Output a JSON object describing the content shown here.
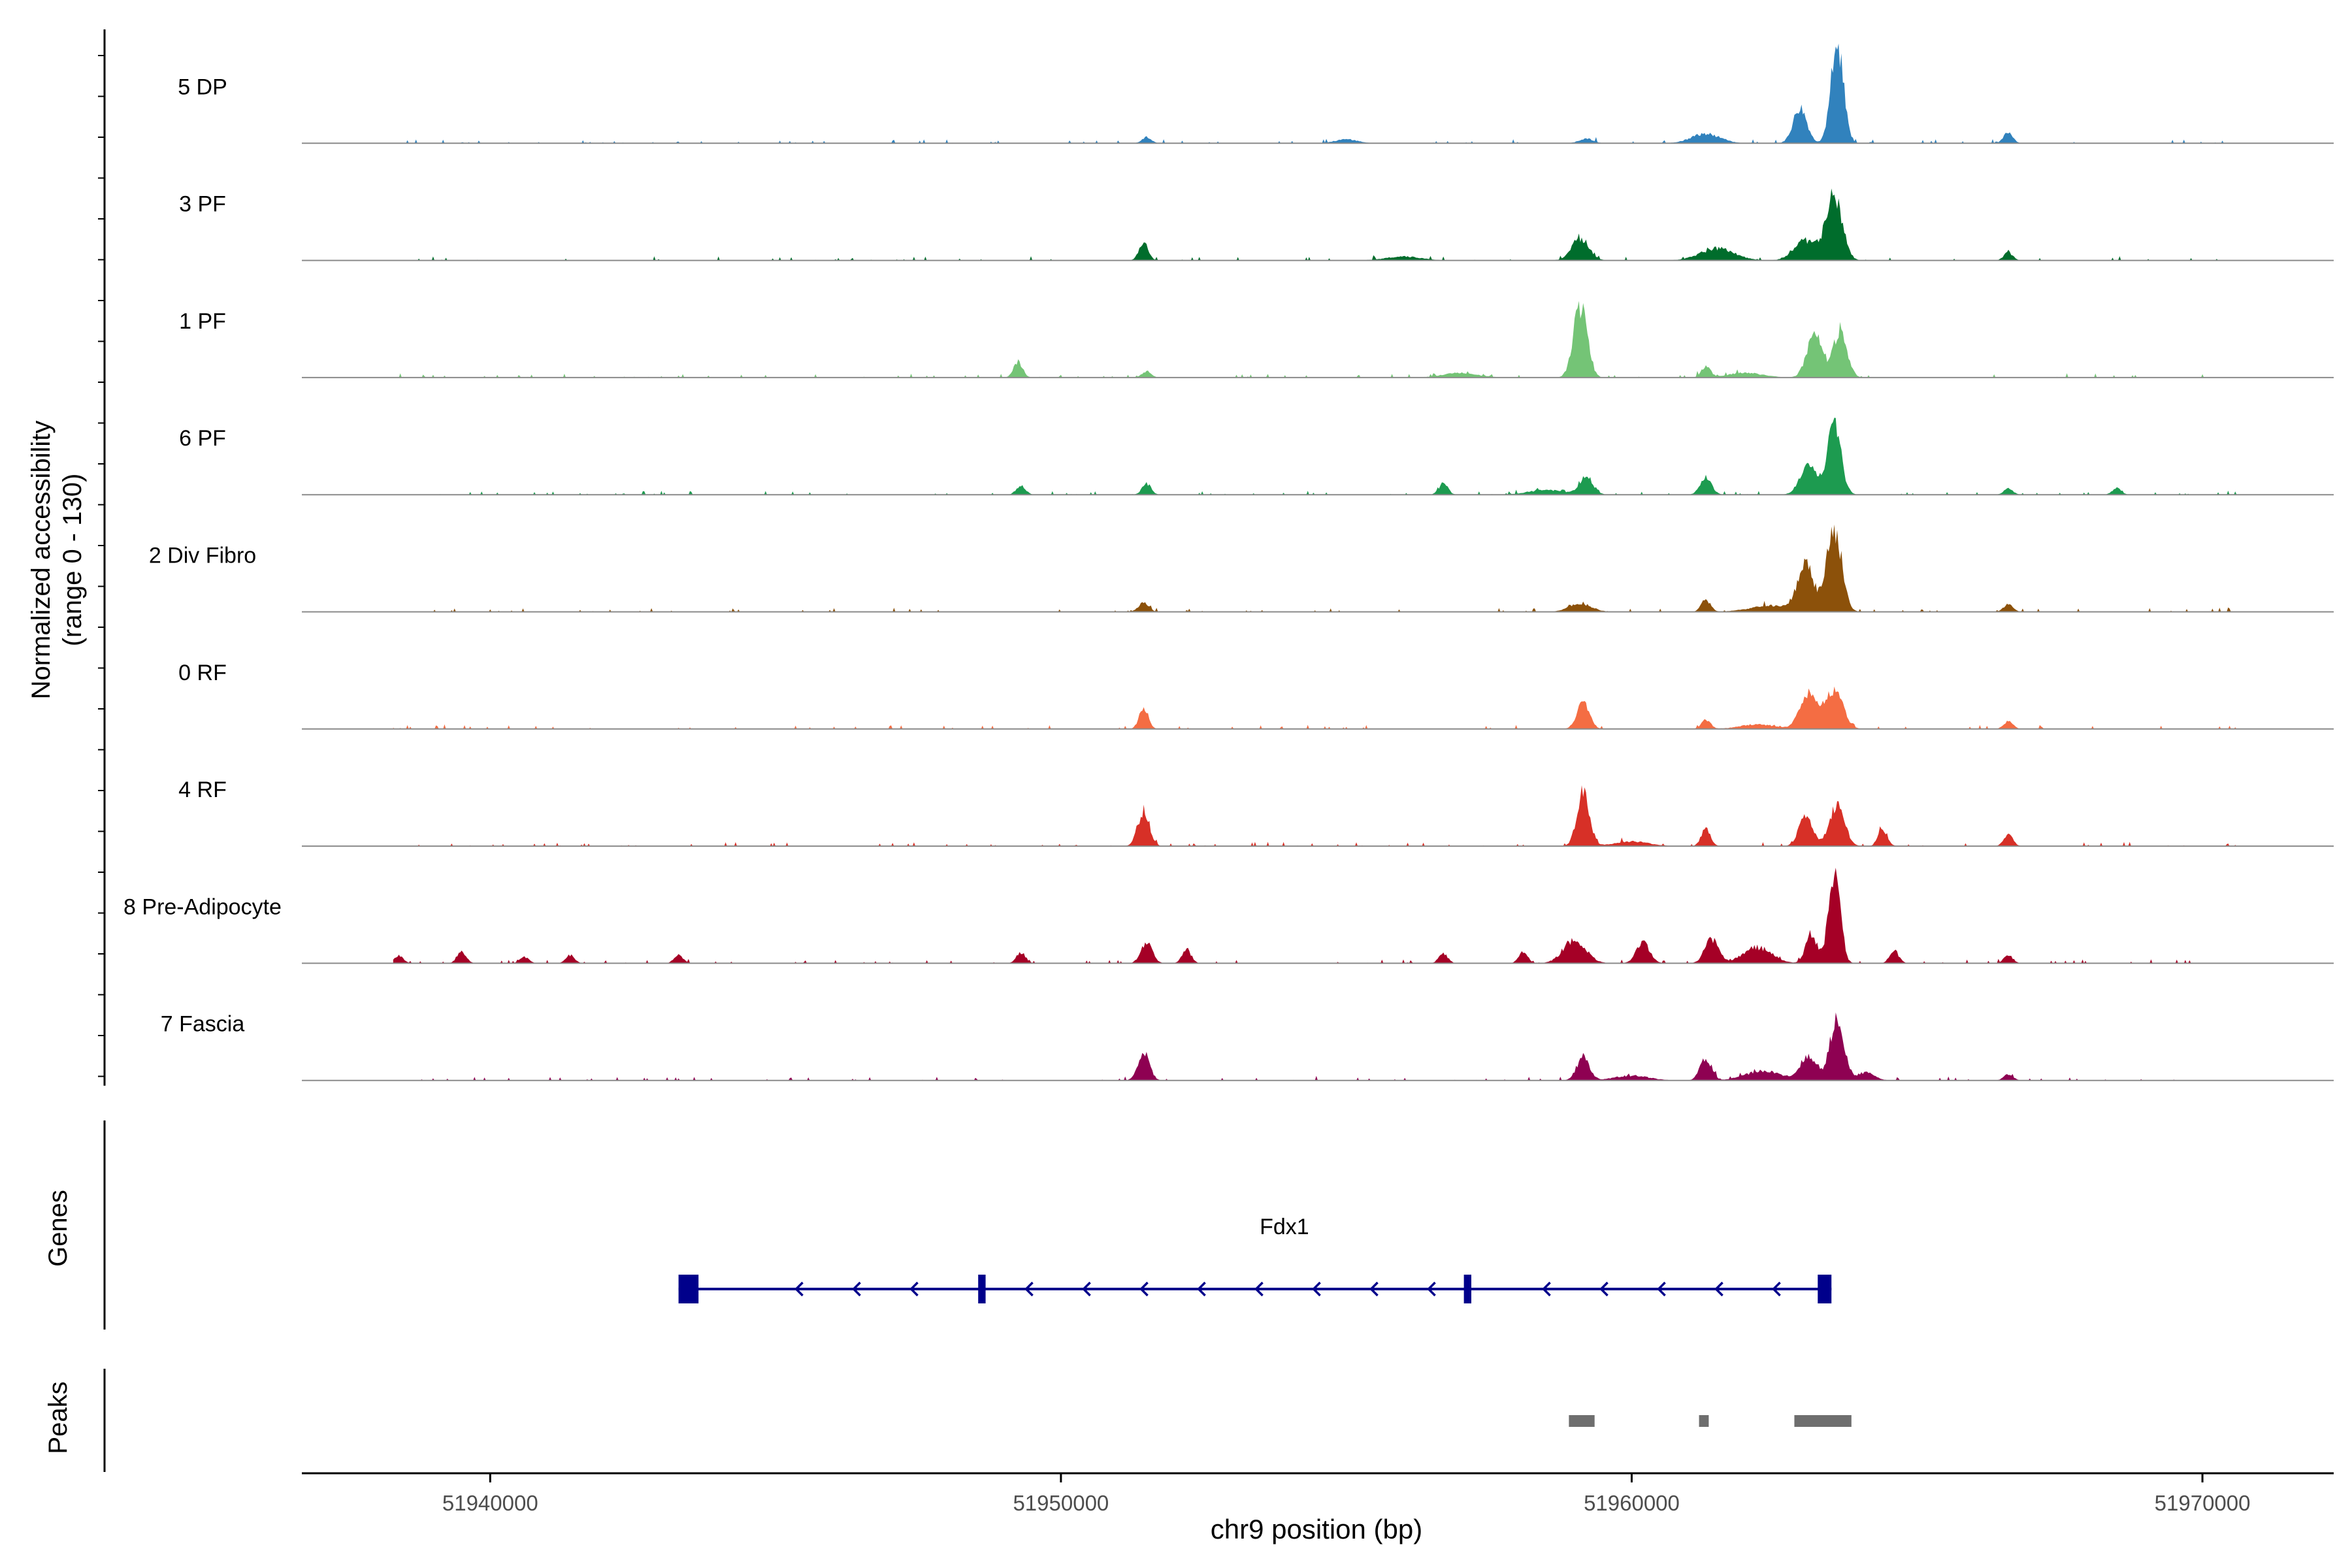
{
  "chart_data": {
    "type": "area",
    "title": "",
    "xlabel": "chr9 position (bp)",
    "ylabel": "Normalized accessibility",
    "ylabel_sub": "(range 0 - 130)",
    "ylim": [
      0,
      130
    ],
    "xlim": [
      51936700,
      51972300
    ],
    "x_ticks": [
      51940000,
      51950000,
      51960000,
      51970000
    ],
    "x_tick_labels": [
      "51940000",
      "51950000",
      "51960000",
      "51970000"
    ],
    "tracks": [
      {
        "name": "5 DP",
        "color": "#3182bd",
        "peaks": [
          [
            51962950,
            45,
            120
          ],
          [
            51963600,
            125,
            110
          ],
          [
            51961300,
            12,
            250
          ],
          [
            51966600,
            14,
            80
          ],
          [
            51951500,
            8,
            80
          ],
          [
            51959200,
            6,
            120
          ],
          [
            51955000,
            5,
            200
          ]
        ]
      },
      {
        "name": "3 PF",
        "color": "#006d2c",
        "peaks": [
          [
            51963550,
            80,
            140
          ],
          [
            51963050,
            25,
            200
          ],
          [
            51959100,
            28,
            150
          ],
          [
            51951450,
            22,
            80
          ],
          [
            51961500,
            15,
            300
          ],
          [
            51966600,
            10,
            80
          ],
          [
            51956000,
            5,
            300
          ]
        ]
      },
      {
        "name": "1 PF",
        "color": "#74c476",
        "peaks": [
          [
            51959100,
            90,
            120
          ],
          [
            51963200,
            55,
            130
          ],
          [
            51963650,
            60,
            120
          ],
          [
            51949250,
            20,
            80
          ],
          [
            51961300,
            14,
            80
          ],
          [
            51951500,
            8,
            80
          ],
          [
            51957000,
            6,
            300
          ],
          [
            51962000,
            6,
            300
          ]
        ]
      },
      {
        "name": "6 PF",
        "color": "#1d9b50",
        "peaks": [
          [
            51963550,
            85,
            120
          ],
          [
            51963100,
            35,
            150
          ],
          [
            51959200,
            22,
            120
          ],
          [
            51961300,
            22,
            100
          ],
          [
            51949300,
            12,
            80
          ],
          [
            51951500,
            14,
            80
          ],
          [
            51956700,
            14,
            80
          ],
          [
            51966600,
            8,
            80
          ],
          [
            51968500,
            8,
            80
          ],
          [
            51958500,
            6,
            300
          ]
        ]
      },
      {
        "name": "2 Div Fibro",
        "color": "#8c510a",
        "peaks": [
          [
            51963550,
            105,
            130
          ],
          [
            51963050,
            55,
            140
          ],
          [
            51961300,
            15,
            80
          ],
          [
            51951450,
            12,
            90
          ],
          [
            51966600,
            10,
            80
          ],
          [
            51959100,
            10,
            200
          ],
          [
            51962500,
            8,
            400
          ]
        ]
      },
      {
        "name": "0 RF",
        "color": "#f46d43",
        "peaks": [
          [
            51963550,
            50,
            150
          ],
          [
            51963100,
            45,
            150
          ],
          [
            51959150,
            32,
            110
          ],
          [
            51951450,
            26,
            80
          ],
          [
            51961300,
            12,
            80
          ],
          [
            51966600,
            10,
            80
          ],
          [
            51962200,
            6,
            300
          ]
        ]
      },
      {
        "name": "4 RF",
        "color": "#d73027",
        "peaks": [
          [
            51959150,
            65,
            110
          ],
          [
            51963600,
            52,
            130
          ],
          [
            51963050,
            38,
            120
          ],
          [
            51951450,
            45,
            100
          ],
          [
            51961300,
            22,
            80
          ],
          [
            51964400,
            22,
            80
          ],
          [
            51966600,
            14,
            80
          ],
          [
            51960000,
            6,
            300
          ]
        ]
      },
      {
        "name": "8 Pre-Adipocyte",
        "color": "#a50026",
        "peaks": [
          [
            51963550,
            120,
            100
          ],
          [
            51963150,
            35,
            100
          ],
          [
            51961400,
            30,
            120
          ],
          [
            51959000,
            28,
            200
          ],
          [
            51960200,
            25,
            120
          ],
          [
            51962200,
            20,
            250
          ],
          [
            51951500,
            25,
            100
          ],
          [
            51952200,
            18,
            80
          ],
          [
            51949300,
            14,
            80
          ],
          [
            51939500,
            14,
            80
          ],
          [
            51958100,
            14,
            80
          ],
          [
            51956700,
            12,
            80
          ],
          [
            51966600,
            10,
            80
          ],
          [
            51964600,
            16,
            80
          ],
          [
            51938400,
            10,
            80
          ],
          [
            51943300,
            10,
            80
          ],
          [
            51940600,
            8,
            80
          ],
          [
            51941400,
            10,
            80
          ]
        ]
      },
      {
        "name": "7 Fascia",
        "color": "#8e0152",
        "peaks": [
          [
            51963600,
            80,
            120
          ],
          [
            51963100,
            30,
            150
          ],
          [
            51959150,
            30,
            110
          ],
          [
            51951450,
            35,
            100
          ],
          [
            51961300,
            28,
            100
          ],
          [
            51962300,
            12,
            300
          ],
          [
            51964100,
            10,
            150
          ],
          [
            51966600,
            8,
            80
          ],
          [
            51960000,
            6,
            300
          ]
        ]
      }
    ],
    "genes_label": "Genes",
    "gene": {
      "name": "Fdx1",
      "color": "#00008b",
      "start": 51943300,
      "end": 51963500,
      "exons": [
        [
          51943300,
          51943650
        ],
        [
          51948550,
          51948680
        ],
        [
          51957060,
          51957190
        ],
        [
          51963260,
          51963500
        ]
      ],
      "strand": "-"
    },
    "peaks_label": "Peaks",
    "peak_regions": [
      [
        51958900,
        51959350
      ],
      [
        51961180,
        51961350
      ],
      [
        51962850,
        51963850
      ]
    ],
    "peak_color": "#6e6e6e"
  }
}
